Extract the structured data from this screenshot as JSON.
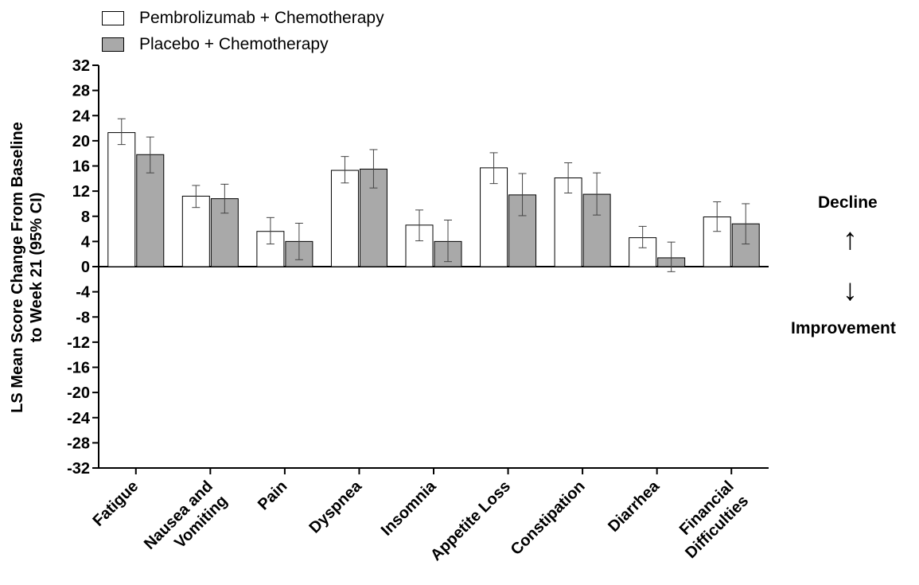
{
  "chart_data": {
    "type": "bar",
    "categories": [
      "Fatigue",
      "Nausea and Vomiting",
      "Pain",
      "Dyspnea",
      "Insomnia",
      "Appetite Loss",
      "Constipation",
      "Diarrhea",
      "Financial Difficulties"
    ],
    "series": [
      {
        "name": "Pembrolizumab + Chemotherapy",
        "color": "#ffffff",
        "values": [
          21.3,
          11.2,
          5.6,
          15.3,
          6.6,
          15.7,
          14.1,
          4.6,
          7.9
        ],
        "ci_low": [
          19.4,
          9.4,
          3.6,
          13.3,
          4.1,
          13.2,
          11.7,
          3.0,
          5.6
        ],
        "ci_high": [
          23.5,
          12.9,
          7.8,
          17.5,
          9.0,
          18.1,
          16.5,
          6.4,
          10.3
        ]
      },
      {
        "name": "Placebo + Chemotherapy",
        "color": "#a9a9a9",
        "values": [
          17.8,
          10.8,
          4.0,
          15.5,
          4.0,
          11.4,
          11.5,
          1.4,
          6.8
        ],
        "ci_low": [
          14.9,
          8.5,
          1.1,
          12.5,
          0.8,
          8.1,
          8.2,
          -0.8,
          3.6
        ],
        "ci_high": [
          20.6,
          13.1,
          6.9,
          18.6,
          7.4,
          14.8,
          14.9,
          3.9,
          10.0
        ]
      }
    ],
    "ylabel": [
      "LS Mean Score Change From Baseline",
      "to Week 21 (95% CI)"
    ],
    "xlabel": "",
    "ylim": [
      -32,
      32
    ],
    "yticks": [
      32,
      28,
      24,
      20,
      16,
      12,
      8,
      4,
      0,
      -4,
      -8,
      -12,
      -16,
      -20,
      -24,
      -28,
      -32
    ],
    "xtick_labels": [
      [
        "Fatigue"
      ],
      [
        "Nausea and",
        "Vomiting"
      ],
      [
        "Pain"
      ],
      [
        "Dyspnea"
      ],
      [
        "Insomnia"
      ],
      [
        "Appetite Loss"
      ],
      [
        "Constipation"
      ],
      [
        "Diarrhea"
      ],
      [
        "Financial",
        "Difficulties"
      ]
    ],
    "legend_position": "top-left",
    "grid": false
  },
  "annotations": {
    "decline_label": "Decline",
    "improvement_label": "Improvement",
    "up_arrow": "↑",
    "down_arrow": "↓"
  }
}
